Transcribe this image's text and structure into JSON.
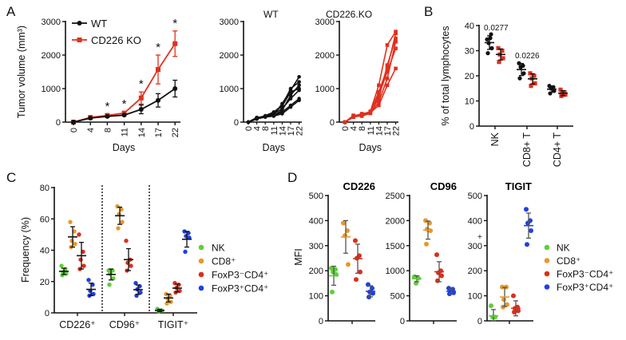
{
  "panels": [
    "A",
    "B",
    "C",
    "D"
  ],
  "colors": {
    "wt": "#111111",
    "ko": "#e0301e",
    "NK": "#5fcf3a",
    "CD8": "#e8982a",
    "FoxP3neg": "#d9301c",
    "FoxP3pos": "#2040e0"
  },
  "chart_data": [
    {
      "type": "line",
      "xlabel": "Days",
      "ylabel": "Tumor volume (mm³)",
      "categories": [
        "0",
        "4",
        "8",
        "11",
        "14",
        "17",
        "22"
      ],
      "ylim": [
        0,
        3000
      ],
      "yticks": [
        "0",
        "1000",
        "2000",
        "3000"
      ],
      "legend": "top-left",
      "series": [
        {
          "name": "WT",
          "color": "#111111",
          "marker": "circle",
          "values": [
            0,
            120,
            170,
            210,
            380,
            650,
            1000
          ],
          "errors": [
            20,
            30,
            30,
            40,
            130,
            200,
            250
          ]
        },
        {
          "name": "CD226 KO",
          "color": "#e0301e",
          "marker": "square",
          "values": [
            0,
            140,
            200,
            270,
            720,
            1570,
            2340
          ],
          "errors": [
            20,
            30,
            40,
            40,
            180,
            430,
            380
          ]
        }
      ],
      "annotations": [
        {
          "category": "8",
          "text": "*"
        },
        {
          "category": "11",
          "text": "*"
        },
        {
          "category": "14",
          "text": "*"
        },
        {
          "category": "17",
          "text": "*"
        },
        {
          "category": "22",
          "text": "*"
        }
      ]
    },
    {
      "type": "line",
      "title": "WT",
      "xlabel": "Days",
      "categories": [
        "0",
        "4",
        "8",
        "11",
        "14",
        "17",
        "22"
      ],
      "ylim": [
        0,
        3000
      ],
      "yticks": [
        "0",
        "1000",
        "2000",
        "3000"
      ],
      "color": "#111111",
      "marker": "circle",
      "series": [
        {
          "values": [
            0,
            130,
            160,
            200,
            300,
            500,
            700
          ]
        },
        {
          "values": [
            0,
            110,
            180,
            250,
            400,
            700,
            950
          ]
        },
        {
          "values": [
            0,
            140,
            170,
            220,
            550,
            950,
            1350
          ]
        },
        {
          "values": [
            0,
            100,
            150,
            180,
            250,
            450,
            650
          ]
        },
        {
          "values": [
            0,
            120,
            190,
            300,
            500,
            1000,
            1200
          ]
        },
        {
          "values": [
            0,
            90,
            160,
            200,
            350,
            800,
            1100
          ]
        },
        {
          "values": [
            0,
            130,
            170,
            280,
            480,
            900,
            1000
          ]
        }
      ]
    },
    {
      "type": "line",
      "title": "CD226.KO",
      "xlabel": "Days",
      "categories": [
        "0",
        "4",
        "8",
        "11",
        "14",
        "17",
        "22"
      ],
      "ylim": [
        0,
        3000
      ],
      "yticks": [
        "0",
        "1000",
        "2000",
        "3000"
      ],
      "color": "#e0301e",
      "marker": "square",
      "series": [
        {
          "values": [
            0,
            150,
            200,
            280,
            500,
            1100,
            1600
          ]
        },
        {
          "values": [
            0,
            180,
            250,
            300,
            800,
            1500,
            2200
          ]
        },
        {
          "values": [
            0,
            200,
            220,
            320,
            1100,
            2300,
            2700
          ]
        },
        {
          "values": [
            0,
            150,
            230,
            290,
            700,
            1700,
            2500
          ]
        },
        {
          "values": [
            0,
            170,
            180,
            260,
            600,
            1300,
            2400
          ]
        },
        {
          "values": [
            0,
            160,
            210,
            300,
            900,
            1600,
            2650
          ]
        }
      ]
    },
    {
      "type": "scatter",
      "ylabel": "% of total lymphocytes",
      "categories": [
        "NK",
        "CD8+ T",
        "CD4+ T"
      ],
      "ylim": [
        0,
        40
      ],
      "yticks": [
        "0",
        "10",
        "20",
        "30",
        "40"
      ],
      "series": [
        {
          "name": "WT",
          "color": "#111111",
          "marker": "circle",
          "points": [
            [
              34.5,
              36.5,
              33,
              31,
              29,
              35
            ],
            [
              25,
              24,
              23.5,
              21,
              19
            ],
            [
              16,
              15.5,
              15,
              14,
              13
            ]
          ],
          "mean": [
            33.2,
            22.5,
            14.7
          ],
          "sd": [
            2.7,
            2.4,
            1.2
          ]
        },
        {
          "name": "CD226 KO",
          "color": "#e0301e",
          "marker": "square",
          "points": [
            [
              31,
              30,
              28.5,
              27,
              25.5
            ],
            [
              21,
              20,
              19,
              17,
              16
            ],
            [
              14.5,
              13.5,
              13,
              12.5,
              12
            ]
          ],
          "mean": [
            28.5,
            18.8,
            13.1
          ],
          "sd": [
            2.2,
            2.0,
            1.0
          ]
        }
      ],
      "annotations": [
        {
          "category": "NK",
          "text": "0.0277"
        },
        {
          "category": "CD8+ T",
          "text": "0.0226"
        }
      ]
    },
    {
      "type": "scatter",
      "ylabel": "Frequency (%)",
      "categories": [
        "CD226⁺",
        "CD96⁺",
        "TIGIT⁺"
      ],
      "ylim": [
        0,
        80
      ],
      "yticks": [
        "0",
        "20",
        "40",
        "60",
        "80"
      ],
      "legend": "right",
      "series": [
        {
          "name": "NK",
          "color": "#5fcf3a",
          "points": [
            [
              30,
              28,
              26,
              25,
              24
            ],
            [
              27,
              27,
              25,
              22,
              18
            ],
            [
              2.5,
              1.5,
              1,
              1.5
            ]
          ],
          "mean": [
            26.5,
            24.5,
            1.5
          ],
          "sd": [
            2,
            3.5,
            0.8
          ]
        },
        {
          "name": "CD8⁺",
          "color": "#e8982a",
          "points": [
            [
              58,
              52,
              46,
              44,
              42
            ],
            [
              68,
              66,
              63,
              58,
              54
            ],
            [
              12,
              11,
              9,
              7,
              6
            ]
          ],
          "mean": [
            48.5,
            62,
            9.5
          ],
          "sd": [
            6.5,
            5.5,
            2.5
          ]
        },
        {
          "name": "FoxP3⁻CD4⁺",
          "color": "#d9301c",
          "points": [
            [
              50,
              39,
              34,
              30,
              28
            ],
            [
              46,
              34,
              32,
              30,
              27
            ],
            [
              19,
              18,
              16,
              14,
              13
            ]
          ],
          "mean": [
            36.5,
            34,
            15.8
          ],
          "sd": [
            8.5,
            7,
            2.5
          ]
        },
        {
          "name": "FoxP3⁺CD4⁺",
          "color": "#2040e0",
          "points": [
            [
              21,
              18,
              14,
              12,
              11
            ],
            [
              19,
              17,
              15,
              13,
              11
            ],
            [
              52,
              51,
              49,
              48,
              39
            ]
          ],
          "mean": [
            15,
            14.8,
            47
          ],
          "sd": [
            4,
            3,
            5
          ]
        }
      ]
    },
    {
      "type": "scatter",
      "title": "CD226",
      "ylabel": "MFI",
      "categories": [
        "NK",
        "CD8⁺",
        "FoxP3⁻CD4⁺",
        "FoxP3⁺CD4⁺"
      ],
      "ylim": [
        0,
        500
      ],
      "yticks": [
        "0",
        "100",
        "200",
        "300",
        "400",
        "500"
      ],
      "series": [
        {
          "name": "NK",
          "points": [
            210,
            205,
            195,
            185,
            115
          ],
          "mean": 180,
          "sd": 38
        },
        {
          "name": "CD8⁺",
          "points": [
            390,
            360,
            340,
            225
          ],
          "mean": 335,
          "sd": 65
        },
        {
          "name": "FoxP3⁻CD4⁺",
          "points": [
            320,
            260,
            250,
            195,
            165
          ],
          "mean": 248,
          "sd": 58
        },
        {
          "name": "FoxP3⁺CD4⁺",
          "points": [
            145,
            130,
            115,
            110,
            95
          ],
          "mean": 118,
          "sd": 22
        }
      ]
    },
    {
      "type": "scatter",
      "title": "CD96",
      "categories": [
        "NK",
        "CD8⁺",
        "FoxP3⁻CD4⁺",
        "FoxP3⁺CD4⁺"
      ],
      "ylim": [
        0,
        2500
      ],
      "yticks": [
        "0",
        "500",
        "1000",
        "1500",
        "2000",
        "2500"
      ],
      "series": [
        {
          "name": "NK",
          "points": [
            880,
            850,
            750
          ],
          "mean": 840,
          "sd": 60
        },
        {
          "name": "CD8⁺",
          "points": [
            2000,
            1950,
            1830,
            1800,
            1530
          ],
          "mean": 1810,
          "sd": 180
        },
        {
          "name": "FoxP3⁻CD4⁺",
          "points": [
            1320,
            1000,
            960,
            900,
            800
          ],
          "mean": 980,
          "sd": 200
        },
        {
          "name": "FoxP3⁺CD4⁺",
          "points": [
            650,
            630,
            580,
            560,
            540
          ],
          "mean": 590,
          "sd": 50
        }
      ]
    },
    {
      "type": "scatter",
      "title": "TIGIT",
      "categories": [
        "NK",
        "CD8⁺",
        "FoxP3⁻CD4⁺",
        "FoxP3⁺CD4⁺"
      ],
      "ylim": [
        0,
        500
      ],
      "yticks": [
        "0",
        "100",
        "200",
        "300",
        "400",
        "500"
      ],
      "legend": "right",
      "legend_entries": [
        "NK",
        "CD8⁺",
        "FoxP3⁻CD4⁺",
        "FoxP3⁺CD4⁺"
      ],
      "annotation": "+",
      "series": [
        {
          "name": "NK",
          "points": [
            60,
            15,
            15
          ],
          "mean": 20,
          "sd": 25
        },
        {
          "name": "CD8⁺",
          "points": [
            135,
            135,
            85,
            65,
            55
          ],
          "mean": 95,
          "sd": 38
        },
        {
          "name": "FoxP3⁻CD4⁺",
          "points": [
            100,
            55,
            50,
            40,
            35
          ],
          "mean": 50,
          "sd": 30
        },
        {
          "name": "FoxP3⁺CD4⁺",
          "points": [
            445,
            400,
            390,
            360,
            305
          ],
          "mean": 380,
          "sd": 50
        }
      ]
    }
  ]
}
